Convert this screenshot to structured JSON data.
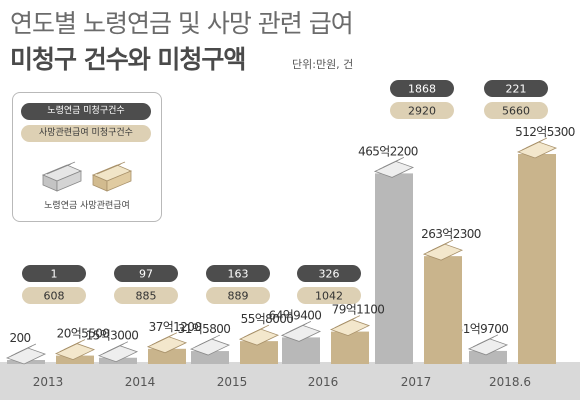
{
  "title_line1": "연도별 노령연금 및 사망 관련 급여",
  "title_line2": "미청구 건수와 미청구액",
  "unit": "단위:만원, 건",
  "legend": {
    "count_label": "노령연금 미청구건수",
    "count_label2": "사망관련급여 미청구건수",
    "amount_label": "노령연금 사망관련급여"
  },
  "colors": {
    "old_age": "#b8b8b8",
    "death": "#c9b48c",
    "count_dark": "#4d4d4d",
    "count_light": "#ddd0b4",
    "axis_band": "#d9d9d9"
  },
  "chart_data": {
    "type": "bar",
    "title": "연도별 노령연금 및 사망 관련 급여 미청구 건수와 미청구액",
    "categories": [
      "2013",
      "2014",
      "2015",
      "2016",
      "2017",
      "2018.6"
    ],
    "series": [
      {
        "name": "노령연금",
        "values": [
          200,
          153000,
          315800,
          649400,
          4652200,
          319700
        ],
        "labels": [
          "200",
          "15억3000",
          "31억5800",
          "64억9400",
          "465억2200",
          "31억9700"
        ],
        "counts": [
          "1",
          "97",
          "163",
          "326",
          "1868",
          "221"
        ]
      },
      {
        "name": "사망관련급여",
        "values": [
          205500,
          371200,
          558000,
          791100,
          2632300,
          5125300
        ],
        "labels": [
          "20억5500",
          "37억1200",
          "55억8000",
          "79억1100",
          "263억2300",
          "512억5300"
        ],
        "counts": [
          "608",
          "885",
          "889",
          "1042",
          "2920",
          "5660"
        ]
      }
    ]
  }
}
